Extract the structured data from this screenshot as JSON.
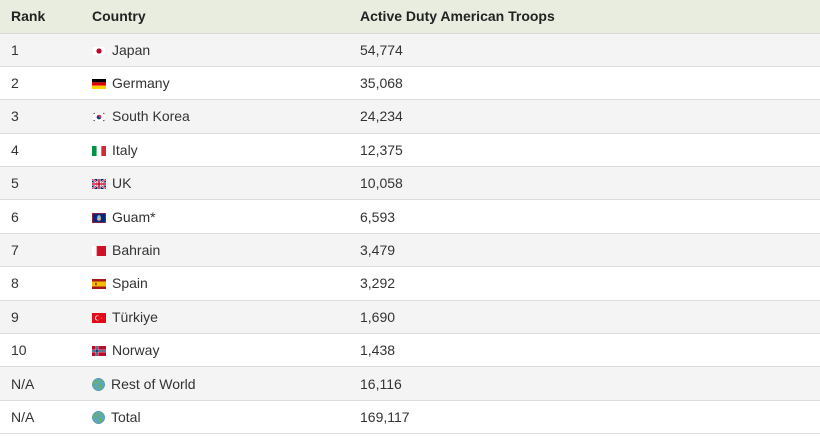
{
  "chart_data": {
    "type": "table",
    "columns": [
      "Rank",
      "Country",
      "Active Duty American Troops"
    ],
    "rows": [
      {
        "rank": "1",
        "country": "Japan",
        "troops": "54,774",
        "icon": "japan-flag-icon"
      },
      {
        "rank": "2",
        "country": "Germany",
        "troops": "35,068",
        "icon": "germany-flag-icon"
      },
      {
        "rank": "3",
        "country": "South Korea",
        "troops": "24,234",
        "icon": "south-korea-flag-icon"
      },
      {
        "rank": "4",
        "country": "Italy",
        "troops": "12,375",
        "icon": "italy-flag-icon"
      },
      {
        "rank": "5",
        "country": "UK",
        "troops": "10,058",
        "icon": "uk-flag-icon"
      },
      {
        "rank": "6",
        "country": "Guam*",
        "troops": "6,593",
        "icon": "guam-flag-icon"
      },
      {
        "rank": "7",
        "country": "Bahrain",
        "troops": "3,479",
        "icon": "bahrain-flag-icon"
      },
      {
        "rank": "8",
        "country": "Spain",
        "troops": "3,292",
        "icon": "spain-flag-icon"
      },
      {
        "rank": "9",
        "country": "Türkiye",
        "troops": "1,690",
        "icon": "turkiye-flag-icon"
      },
      {
        "rank": "10",
        "country": "Norway",
        "troops": "1,438",
        "icon": "norway-flag-icon"
      },
      {
        "rank": "N/A",
        "country": "Rest of World",
        "troops": "16,116",
        "icon": "globe-icon"
      },
      {
        "rank": "N/A",
        "country": "Total",
        "troops": "169,117",
        "icon": "globe-icon"
      }
    ],
    "colors": {
      "header_background": "#e8eddf",
      "row_stripe": "#f4f4f4",
      "row_plain": "#ffffff"
    }
  }
}
